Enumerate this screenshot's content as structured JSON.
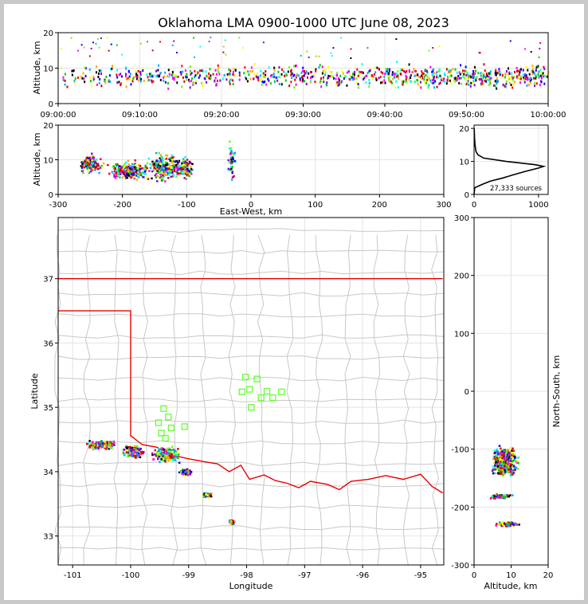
{
  "title": "Oklahoma LMA 0900-1000 UTC June 08, 2023",
  "chart_data": [
    {
      "id": "time-altitude",
      "type": "scatter",
      "xlabel": "",
      "ylabel": "Altitude, km",
      "x_ticks": [
        "09:00:00",
        "09:10:00",
        "09:20:00",
        "09:30:00",
        "09:40:00",
        "09:50:00",
        "10:00:00"
      ],
      "y_ticks": [
        0,
        10,
        20
      ],
      "xlim_minutes": [
        0,
        60
      ],
      "ylim": [
        0,
        20
      ],
      "activity_clusters": [
        {
          "t_start": 0,
          "t_end": 60,
          "alt_center": 8,
          "alt_spread": 5,
          "note": "continuous sources, densest 45-60 min"
        }
      ]
    },
    {
      "id": "ew-altitude",
      "type": "scatter",
      "xlabel": "East-West, km",
      "ylabel": "Altitude, km",
      "x_ticks": [
        -300,
        -200,
        -100,
        0,
        100,
        200,
        300
      ],
      "y_ticks": [
        0,
        10,
        20
      ],
      "xlim": [
        -300,
        300
      ],
      "ylim": [
        0,
        20
      ],
      "clusters": [
        {
          "x": -250,
          "x_spread": 15,
          "alt": 9,
          "alt_spread": 3
        },
        {
          "x": -190,
          "x_spread": 30,
          "alt": 7,
          "alt_spread": 3
        },
        {
          "x": -135,
          "x_spread": 25,
          "alt": 8,
          "alt_spread": 5
        },
        {
          "x": -105,
          "x_spread": 12,
          "alt": 8,
          "alt_spread": 4
        },
        {
          "x": -32,
          "x_spread": 5,
          "alt": 10,
          "alt_spread": 6
        }
      ]
    },
    {
      "id": "altitude-histogram",
      "type": "line",
      "x_ticks": [
        0,
        1000
      ],
      "y_ticks": [
        0,
        10,
        20
      ],
      "xlim": [
        0,
        1150
      ],
      "ylim": [
        0,
        21
      ],
      "total_label": "27,333 sources",
      "profile": [
        {
          "alt": 0,
          "count": 0
        },
        {
          "alt": 2,
          "count": 10
        },
        {
          "alt": 3,
          "count": 120
        },
        {
          "alt": 4,
          "count": 250
        },
        {
          "alt": 5,
          "count": 450
        },
        {
          "alt": 6,
          "count": 620
        },
        {
          "alt": 7,
          "count": 800
        },
        {
          "alt": 8,
          "count": 1000
        },
        {
          "alt": 8.5,
          "count": 1080
        },
        {
          "alt": 9,
          "count": 950
        },
        {
          "alt": 10,
          "count": 500
        },
        {
          "alt": 11,
          "count": 150
        },
        {
          "alt": 12,
          "count": 60
        },
        {
          "alt": 13,
          "count": 30
        },
        {
          "alt": 15,
          "count": 15
        },
        {
          "alt": 17,
          "count": 8
        },
        {
          "alt": 20,
          "count": 2
        }
      ]
    },
    {
      "id": "plan-view-map",
      "type": "scatter",
      "xlabel": "Longitude",
      "ylabel": "Latitude",
      "x_ticks": [
        -101,
        -100,
        -99,
        -98,
        -97,
        -96,
        -95
      ],
      "y_ticks": [
        33,
        34,
        35,
        36,
        37
      ],
      "xlim": [
        -101.25,
        -94.6
      ],
      "ylim": [
        32.55,
        37.95
      ],
      "stations": [
        {
          "lon": -98.02,
          "lat": 35.47
        },
        {
          "lon": -97.82,
          "lat": 35.44
        },
        {
          "lon": -97.95,
          "lat": 35.28
        },
        {
          "lon": -98.08,
          "lat": 35.24
        },
        {
          "lon": -97.75,
          "lat": 35.15
        },
        {
          "lon": -97.65,
          "lat": 35.25
        },
        {
          "lon": -97.55,
          "lat": 35.15
        },
        {
          "lon": -97.4,
          "lat": 35.24
        },
        {
          "lon": -97.92,
          "lat": 35.0
        },
        {
          "lon": -99.43,
          "lat": 34.98
        },
        {
          "lon": -99.35,
          "lat": 34.85
        },
        {
          "lon": -99.52,
          "lat": 34.76
        },
        {
          "lon": -99.3,
          "lat": 34.68
        },
        {
          "lon": -99.07,
          "lat": 34.7
        },
        {
          "lon": -99.47,
          "lat": 34.6
        },
        {
          "lon": -99.4,
          "lat": 34.52
        }
      ],
      "clusters": [
        {
          "lon": -100.5,
          "lon_spread": 0.25,
          "lat": 34.43,
          "lat_spread": 0.07
        },
        {
          "lon": -99.95,
          "lon_spread": 0.2,
          "lat": 34.32,
          "lat_spread": 0.1
        },
        {
          "lon": -99.4,
          "lon_spread": 0.25,
          "lat": 34.28,
          "lat_spread": 0.12
        },
        {
          "lon": -99.05,
          "lon_spread": 0.1,
          "lat": 34.0,
          "lat_spread": 0.05
        },
        {
          "lon": -98.7,
          "lon_spread": 0.08,
          "lat": 33.65,
          "lat_spread": 0.04
        },
        {
          "lon": -98.27,
          "lon_spread": 0.05,
          "lat": 33.23,
          "lat_spread": 0.04
        }
      ]
    },
    {
      "id": "ns-altitude",
      "type": "scatter",
      "xlabel": "Altitude, km",
      "ylabel": "North-South, km",
      "x_ticks": [
        0,
        10,
        20
      ],
      "y_ticks": [
        300,
        200,
        100,
        0,
        -100,
        -200,
        -300
      ],
      "xlim": [
        0,
        20
      ],
      "ylim": [
        -300,
        300
      ],
      "clusters": [
        {
          "y": -110,
          "y_spread": 15,
          "alt": 8,
          "alt_spread": 4
        },
        {
          "y": -130,
          "y_spread": 15,
          "alt": 8,
          "alt_spread": 4
        },
        {
          "y": -180,
          "y_spread": 4,
          "alt": 7,
          "alt_spread": 4
        },
        {
          "y": -228,
          "y_spread": 4,
          "alt": 9,
          "alt_spread": 4
        }
      ]
    }
  ]
}
